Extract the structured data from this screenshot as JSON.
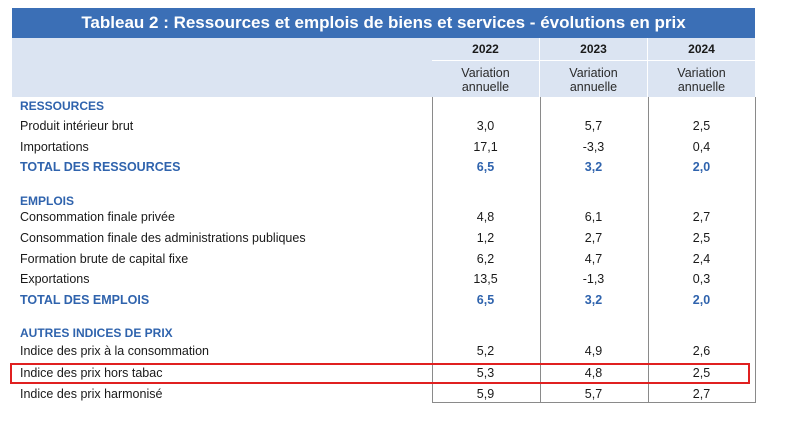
{
  "title": "Tableau 2 : Ressources et emplois de biens et services - évolutions en prix",
  "columns": [
    {
      "year": "2022",
      "sub1": "Variation",
      "sub2": "annuelle"
    },
    {
      "year": "2023",
      "sub1": "Variation",
      "sub2": "annuelle"
    },
    {
      "year": "2024",
      "sub1": "Variation",
      "sub2": "annuelle"
    }
  ],
  "rows": [
    {
      "label": "RESSOURCES",
      "kind": "section",
      "values": [
        "",
        "",
        ""
      ]
    },
    {
      "label": "Produit intérieur brut",
      "kind": "item",
      "values": [
        "3,0",
        "5,7",
        "2,5"
      ]
    },
    {
      "label": "Importations",
      "kind": "item",
      "values": [
        "17,1",
        "-3,3",
        "0,4"
      ]
    },
    {
      "label": "TOTAL DES RESSOURCES",
      "kind": "total",
      "values": [
        "6,5",
        "3,2",
        "2,0"
      ]
    },
    {
      "label": "EMPLOIS",
      "kind": "section",
      "values": [
        "",
        "",
        ""
      ]
    },
    {
      "label": "Consommation finale privée",
      "kind": "item",
      "values": [
        "4,8",
        "6,1",
        "2,7"
      ]
    },
    {
      "label": "Consommation finale des administrations publiques",
      "kind": "item",
      "values": [
        "1,2",
        "2,7",
        "2,5"
      ]
    },
    {
      "label": "Formation brute de capital fixe",
      "kind": "item",
      "values": [
        "6,2",
        "4,7",
        "2,4"
      ]
    },
    {
      "label": "Exportations",
      "kind": "item",
      "values": [
        "13,5",
        "-1,3",
        "0,3"
      ]
    },
    {
      "label": "TOTAL DES EMPLOIS",
      "kind": "total",
      "values": [
        "6,5",
        "3,2",
        "2,0"
      ]
    },
    {
      "label": "AUTRES INDICES DE PRIX",
      "kind": "section",
      "values": [
        "",
        "",
        ""
      ]
    },
    {
      "label": "Indice des prix à la consommation",
      "kind": "item",
      "values": [
        "5,2",
        "4,9",
        "2,6"
      ]
    },
    {
      "label": "Indice des prix hors tabac",
      "kind": "item",
      "values": [
        "5,3",
        "4,8",
        "2,5"
      ]
    },
    {
      "label": "Indice des prix harmonisé",
      "kind": "item",
      "values": [
        "5,9",
        "5,7",
        "2,7"
      ]
    }
  ],
  "highlighted_row": "Indice des prix hors tabac"
}
